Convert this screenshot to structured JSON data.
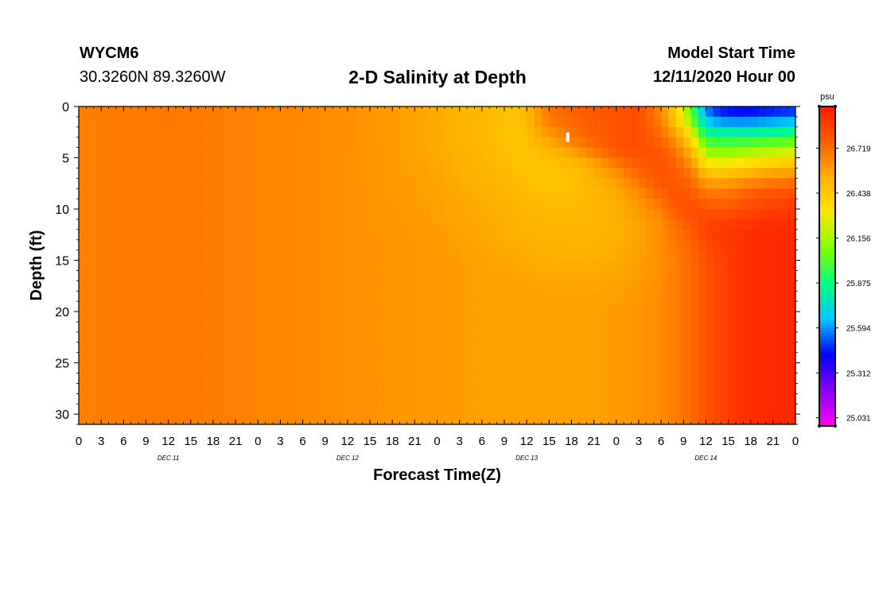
{
  "header": {
    "station": "WYCM6",
    "coords": "30.3260N 89.3260W",
    "title": "2-D Salinity at Depth",
    "start_label": "Model Start Time",
    "start_time": "12/11/2020 Hour 00"
  },
  "chart_data": {
    "type": "heatmap",
    "title": "2-D Salinity at Depth",
    "xlabel": "Forecast Time(Z)",
    "ylabel": "Depth (ft)",
    "x_range_hours": [
      0,
      96
    ],
    "y_range_ft": [
      0,
      31
    ],
    "y_inverted": true,
    "x_tick_labels": [
      "0",
      "3",
      "6",
      "9",
      "12",
      "15",
      "18",
      "21",
      "0",
      "3",
      "6",
      "9",
      "12",
      "15",
      "18",
      "21",
      "0",
      "3",
      "6",
      "9",
      "12",
      "15",
      "18",
      "21",
      "0",
      "3",
      "6",
      "9",
      "12",
      "15",
      "18",
      "21",
      "0"
    ],
    "x_tick_hours": [
      0,
      3,
      6,
      9,
      12,
      15,
      18,
      21,
      24,
      27,
      30,
      33,
      36,
      39,
      42,
      45,
      48,
      51,
      54,
      57,
      60,
      63,
      66,
      69,
      72,
      75,
      78,
      81,
      84,
      87,
      90,
      93,
      96
    ],
    "day_labels": [
      {
        "text": "DEC 11",
        "hour": 12
      },
      {
        "text": "DEC 12",
        "hour": 36
      },
      {
        "text": "DEC 13",
        "hour": 60
      },
      {
        "text": "DEC 14",
        "hour": 84
      }
    ],
    "y_ticks": [
      0,
      5,
      10,
      15,
      20,
      25,
      30
    ],
    "colorbar": {
      "unit": "psu",
      "labels": [
        "26.719",
        "26.438",
        "26.156",
        "25.875",
        "25.594",
        "25.312",
        "25.031"
      ],
      "label_values": [
        26.719,
        26.438,
        26.156,
        25.875,
        25.594,
        25.312,
        25.031
      ],
      "vmin": 24.98,
      "vmax": 26.98,
      "colors": [
        "#ff00ff",
        "#8a00ff",
        "#0000ff",
        "#00c8ff",
        "#00ff80",
        "#80ff00",
        "#ffe600",
        "#ffb000",
        "#ff6000",
        "#ff1a00"
      ]
    },
    "field": {
      "time_hours": [
        0,
        12,
        24,
        36,
        48,
        54,
        58,
        60,
        63,
        66,
        68,
        72,
        75,
        78,
        80,
        82,
        84,
        86,
        88,
        90,
        92,
        96
      ],
      "depth_ft": [
        0,
        1,
        2,
        3,
        4,
        5,
        6,
        7,
        8,
        9,
        10,
        11,
        12,
        14,
        16,
        18,
        20,
        25,
        31
      ],
      "salinity_psu": [
        [
          26.67,
          26.69,
          26.66,
          26.63,
          26.55,
          26.5,
          26.45,
          26.5,
          26.7,
          26.76,
          26.78,
          26.8,
          26.82,
          26.65,
          26.4,
          26.05,
          25.55,
          25.42,
          25.4,
          25.4,
          25.42,
          25.45
        ],
        [
          26.67,
          26.69,
          26.66,
          26.63,
          26.55,
          26.5,
          26.45,
          26.5,
          26.7,
          26.74,
          26.78,
          26.8,
          26.82,
          26.65,
          26.4,
          26.05,
          25.6,
          25.5,
          25.48,
          25.48,
          25.5,
          25.55
        ],
        [
          26.67,
          26.69,
          26.66,
          26.63,
          26.55,
          26.5,
          26.45,
          26.49,
          26.65,
          26.72,
          26.76,
          26.8,
          26.82,
          26.7,
          26.5,
          26.2,
          25.75,
          25.7,
          25.7,
          25.7,
          25.72,
          25.75
        ],
        [
          26.67,
          26.69,
          26.66,
          26.63,
          26.55,
          26.5,
          26.45,
          26.48,
          26.58,
          26.7,
          26.74,
          26.8,
          26.82,
          26.72,
          26.6,
          26.35,
          25.92,
          25.9,
          25.9,
          25.9,
          25.92,
          25.95
        ],
        [
          26.67,
          26.69,
          26.66,
          26.63,
          26.55,
          26.5,
          26.46,
          26.47,
          26.52,
          26.62,
          26.7,
          26.8,
          26.82,
          26.78,
          26.68,
          26.48,
          26.08,
          26.05,
          26.05,
          26.1,
          26.12,
          26.15
        ],
        [
          26.67,
          26.69,
          26.66,
          26.63,
          26.56,
          26.51,
          26.47,
          26.46,
          26.48,
          26.52,
          26.58,
          26.75,
          26.8,
          26.8,
          26.72,
          26.58,
          26.22,
          26.2,
          26.22,
          26.25,
          26.28,
          26.32
        ],
        [
          26.67,
          26.69,
          26.66,
          26.63,
          26.56,
          26.51,
          26.48,
          26.46,
          26.46,
          26.48,
          26.52,
          26.65,
          26.76,
          26.8,
          26.76,
          26.66,
          26.4,
          26.35,
          26.4,
          26.45,
          26.48,
          26.52
        ],
        [
          26.67,
          26.69,
          26.66,
          26.63,
          26.57,
          26.52,
          26.49,
          26.47,
          26.46,
          26.47,
          26.5,
          26.6,
          26.72,
          26.8,
          26.78,
          26.72,
          26.55,
          26.52,
          26.56,
          26.6,
          26.64,
          26.66
        ],
        [
          26.67,
          26.69,
          26.66,
          26.63,
          26.57,
          26.53,
          26.5,
          26.48,
          26.47,
          26.47,
          26.49,
          26.56,
          26.66,
          26.78,
          26.8,
          26.76,
          26.66,
          26.65,
          26.68,
          26.72,
          26.75,
          26.78
        ],
        [
          26.67,
          26.69,
          26.66,
          26.63,
          26.58,
          26.54,
          26.51,
          26.49,
          26.48,
          26.48,
          26.49,
          26.54,
          26.62,
          26.72,
          26.8,
          26.8,
          26.74,
          26.72,
          26.75,
          26.8,
          26.82,
          26.84
        ],
        [
          26.67,
          26.69,
          26.66,
          26.63,
          26.58,
          26.55,
          26.52,
          26.5,
          26.49,
          26.49,
          26.5,
          26.53,
          26.6,
          26.68,
          26.78,
          26.82,
          26.8,
          26.78,
          26.8,
          26.84,
          26.86,
          26.88
        ],
        [
          26.67,
          26.69,
          26.66,
          26.63,
          26.58,
          26.55,
          26.53,
          26.51,
          26.5,
          26.5,
          26.5,
          26.53,
          26.58,
          26.65,
          26.74,
          26.8,
          26.84,
          26.84,
          26.86,
          26.88,
          26.9,
          26.91
        ],
        [
          26.67,
          26.69,
          26.66,
          26.63,
          26.59,
          26.56,
          26.53,
          26.52,
          26.51,
          26.51,
          26.51,
          26.53,
          26.57,
          26.63,
          26.7,
          26.78,
          26.86,
          26.88,
          26.9,
          26.91,
          26.92,
          26.93
        ],
        [
          26.67,
          26.69,
          26.66,
          26.63,
          26.6,
          26.57,
          26.55,
          26.54,
          26.53,
          26.52,
          26.52,
          26.54,
          26.58,
          26.63,
          26.68,
          26.74,
          26.82,
          26.86,
          26.9,
          26.92,
          26.93,
          26.94
        ],
        [
          26.67,
          26.69,
          26.66,
          26.63,
          26.6,
          26.58,
          26.57,
          26.56,
          26.55,
          26.55,
          26.55,
          26.56,
          26.59,
          26.63,
          26.68,
          26.73,
          26.8,
          26.85,
          26.89,
          26.92,
          26.93,
          26.94
        ],
        [
          26.67,
          26.69,
          26.66,
          26.63,
          26.6,
          26.58,
          26.58,
          26.58,
          26.57,
          26.57,
          26.57,
          26.58,
          26.6,
          26.64,
          26.68,
          26.73,
          26.8,
          26.85,
          26.89,
          26.92,
          26.93,
          26.94
        ],
        [
          26.67,
          26.69,
          26.66,
          26.63,
          26.6,
          26.58,
          26.58,
          26.58,
          26.58,
          26.58,
          26.58,
          26.59,
          26.61,
          26.64,
          26.68,
          26.73,
          26.8,
          26.85,
          26.89,
          26.92,
          26.93,
          26.94
        ],
        [
          26.67,
          26.69,
          26.66,
          26.63,
          26.6,
          26.58,
          26.58,
          26.58,
          26.58,
          26.58,
          26.58,
          26.59,
          26.61,
          26.64,
          26.68,
          26.73,
          26.8,
          26.85,
          26.89,
          26.92,
          26.93,
          26.94
        ],
        [
          26.67,
          26.69,
          26.66,
          26.63,
          26.6,
          26.58,
          26.58,
          26.58,
          26.58,
          26.58,
          26.58,
          26.59,
          26.61,
          26.64,
          26.68,
          26.73,
          26.8,
          26.85,
          26.89,
          26.92,
          26.93,
          26.94
        ]
      ]
    },
    "marker": {
      "hour": 65.5,
      "depth_ft": 3
    }
  }
}
